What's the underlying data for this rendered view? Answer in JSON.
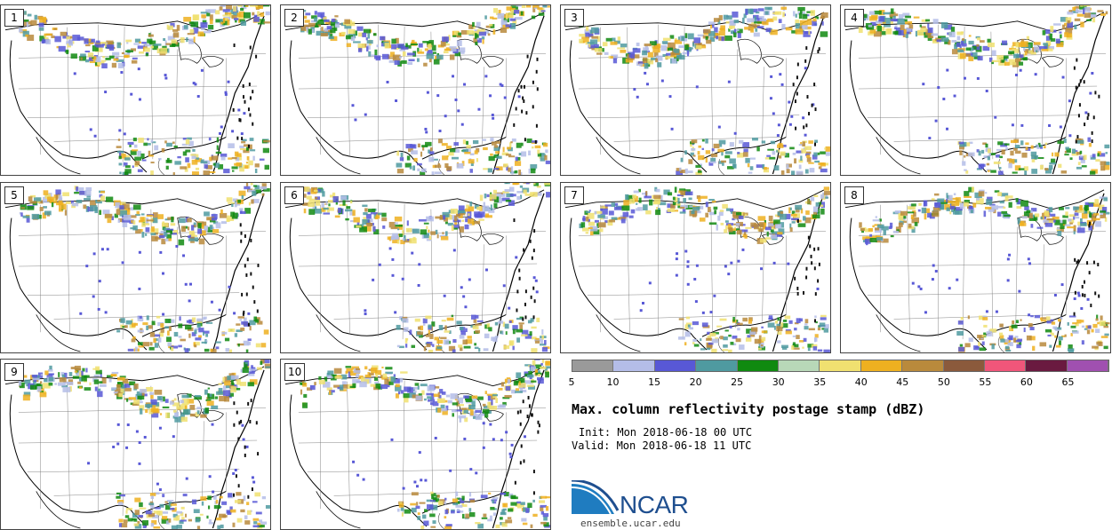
{
  "panels": [
    {
      "label": "1",
      "seed": 11
    },
    {
      "label": "2",
      "seed": 23
    },
    {
      "label": "3",
      "seed": 37
    },
    {
      "label": "4",
      "seed": 41
    },
    {
      "label": "5",
      "seed": 53
    },
    {
      "label": "6",
      "seed": 67
    },
    {
      "label": "7",
      "seed": 71
    },
    {
      "label": "8",
      "seed": 89
    },
    {
      "label": "9",
      "seed": 97
    },
    {
      "label": "10",
      "seed": 103
    }
  ],
  "colorbar": {
    "colors": [
      "#9a9a9a",
      "#b4bde8",
      "#5858d6",
      "#4f9aa0",
      "#108a10",
      "#b8d8b8",
      "#f0e070",
      "#eeb020",
      "#b98a3c",
      "#8b5a3c",
      "#f0567a",
      "#6a1a40",
      "#a050b0"
    ],
    "ticks": [
      "5",
      "10",
      "15",
      "20",
      "25",
      "30",
      "35",
      "40",
      "45",
      "50",
      "55",
      "60",
      "65"
    ]
  },
  "title": "Max. column reflectivity postage stamp (dBZ)",
  "init": "Init: Mon 2018-06-18 00 UTC",
  "valid": "Valid: Mon 2018-06-18 11 UTC",
  "logo": {
    "text": "NCAR",
    "url": "ensemble.ucar.edu"
  }
}
